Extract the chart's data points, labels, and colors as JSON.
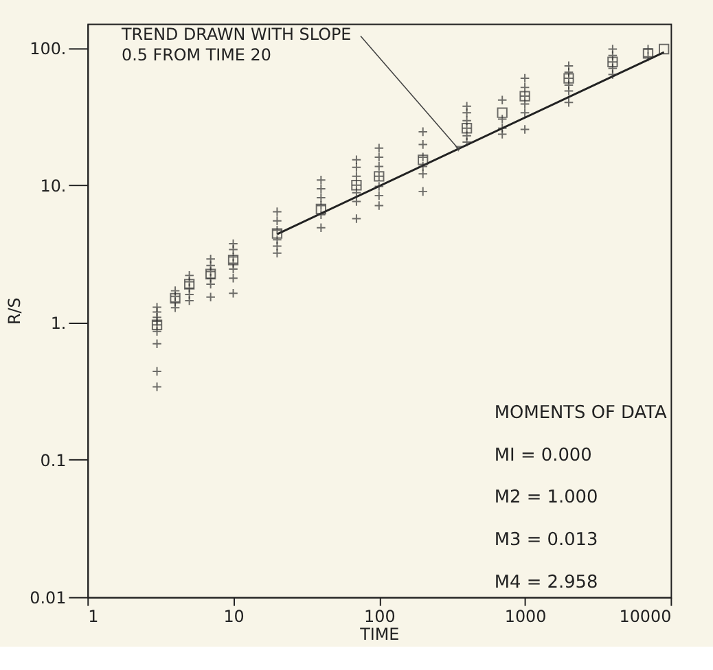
{
  "chart_data": {
    "type": "scatter",
    "xlabel": "TIME",
    "ylabel": "R/S",
    "log": "xy",
    "grid": false,
    "xlim": [
      1,
      10000
    ],
    "ylim": [
      0.01,
      150
    ],
    "xticks": [
      1,
      10,
      100,
      1000,
      10000
    ],
    "yticks": [
      {
        "value": 0.01,
        "label": "0.01"
      },
      {
        "value": 0.1,
        "label": "0.1"
      },
      {
        "value": 1,
        "label": "1."
      },
      {
        "value": 10,
        "label": "10."
      },
      {
        "value": 100,
        "label": "100."
      }
    ],
    "series": [
      {
        "type": "scatter",
        "marker": "cross",
        "color": "#333333",
        "x": [
          3,
          3,
          3,
          3,
          3,
          3,
          3,
          3,
          3,
          4,
          4,
          4,
          4,
          5,
          5,
          5,
          5,
          5,
          7,
          7,
          7,
          7,
          7,
          7,
          10,
          10,
          10,
          10,
          10,
          10,
          10,
          20,
          20,
          20,
          20,
          20,
          20,
          40,
          40,
          40,
          40,
          40,
          40,
          70,
          70,
          70,
          70,
          70,
          70,
          70,
          100,
          100,
          100,
          100,
          100,
          100,
          100,
          200,
          200,
          200,
          200,
          200,
          200,
          400,
          400,
          400,
          400,
          400,
          400,
          700,
          700,
          700,
          700,
          1000,
          1000,
          1000,
          1000,
          1000,
          1000,
          2000,
          2000,
          2000,
          2000,
          2000,
          2000,
          4000,
          4000,
          4000,
          4000,
          4000,
          7000,
          7000
        ],
        "values": [
          1.29,
          1.19,
          1.09,
          1.02,
          0.96,
          0.86,
          0.7,
          0.44,
          0.34,
          1.7,
          1.55,
          1.41,
          1.28,
          2.2,
          1.98,
          1.78,
          1.6,
          1.44,
          2.9,
          2.6,
          2.35,
          2.1,
          1.9,
          1.53,
          3.75,
          3.4,
          3.0,
          2.7,
          2.45,
          2.1,
          1.63,
          6.4,
          5.5,
          4.7,
          4.0,
          3.6,
          3.2,
          10.9,
          9.4,
          8.1,
          7.1,
          6.1,
          4.9,
          15.3,
          13.5,
          11.6,
          10,
          8.8,
          7.6,
          5.7,
          18.6,
          16,
          13.7,
          11.6,
          9.8,
          8.4,
          7.1,
          24.5,
          19.8,
          16,
          13.7,
          12.1,
          9,
          37.6,
          33.7,
          29.5,
          26,
          22.9,
          20.6,
          41.7,
          30.3,
          26,
          23.5,
          60,
          51.5,
          44.5,
          39,
          33.7,
          25.5,
          74,
          66.5,
          60,
          53.5,
          48.5,
          40,
          98,
          88,
          79,
          71,
          64,
          98,
          86
        ]
      },
      {
        "type": "scatter",
        "marker": "square",
        "color": "#333333",
        "x": [
          3,
          4,
          5,
          7,
          10,
          20,
          40,
          70,
          100,
          200,
          400,
          700,
          1000,
          2000,
          4000,
          7000,
          9000
        ],
        "values": [
          0.96,
          1.5,
          1.9,
          2.25,
          2.85,
          4.45,
          6.7,
          10,
          11.6,
          15.3,
          26,
          33.7,
          44.5,
          60,
          79,
          91,
          98
        ]
      },
      {
        "type": "line",
        "line_style": "solid",
        "color": "#222222",
        "x": [
          20,
          9000
        ],
        "values": [
          4.4,
          93
        ]
      }
    ],
    "annotations": [
      {
        "text": "TREND DRAWN WITH SLOPE\n0.5 FROM TIME 20",
        "x": 350,
        "y": 18.4
      },
      "MOMENTS OF DATA",
      "MI  =  0.000",
      "M2 =  1.000",
      "M3 =  0.013",
      "M4 =  2.958"
    ]
  }
}
